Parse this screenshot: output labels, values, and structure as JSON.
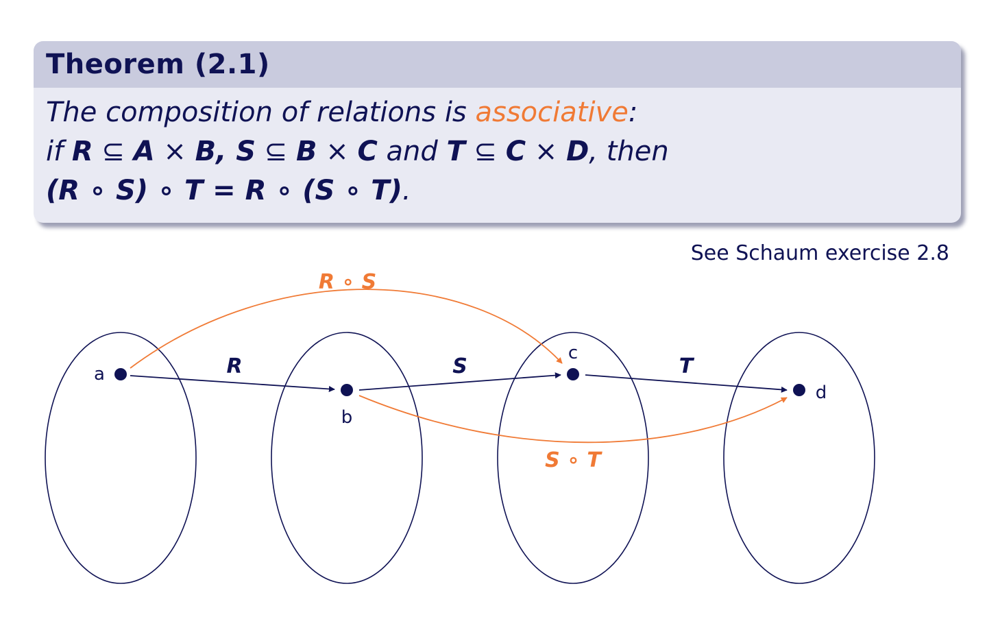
{
  "theorem": {
    "title": "Theorem (2.1)",
    "line1": {
      "prefix": "The composition of relations is ",
      "highlight": "associative",
      "suffix": ":"
    },
    "line2": {
      "if": "if ",
      "R": "R",
      "sub1": " ⊆ ",
      "A": "A",
      "x1": " × ",
      "B1": "B",
      "comma": ", ",
      "S": "S",
      "sub2": " ⊆ ",
      "B2": "B",
      "x2": " × ",
      "C1": "C",
      "and": " and ",
      "T": "T",
      "sub3": " ⊆ ",
      "C2": "C",
      "x3": " × ",
      "D": "D",
      "then": ", then"
    },
    "line3": {
      "equation": "(R ∘ S) ∘ T = R ∘ (S ∘ T)",
      "period": "."
    }
  },
  "reference": "See Schaum exercise 2.8",
  "diagram": {
    "points": [
      "a",
      "b",
      "c",
      "d"
    ],
    "arrow_labels": {
      "R": "R",
      "S": "S",
      "T": "T",
      "RS": "R ∘ S",
      "ST": "S ∘ T"
    },
    "colors": {
      "navy": "#0f1254",
      "orange": "#f07a35"
    }
  }
}
